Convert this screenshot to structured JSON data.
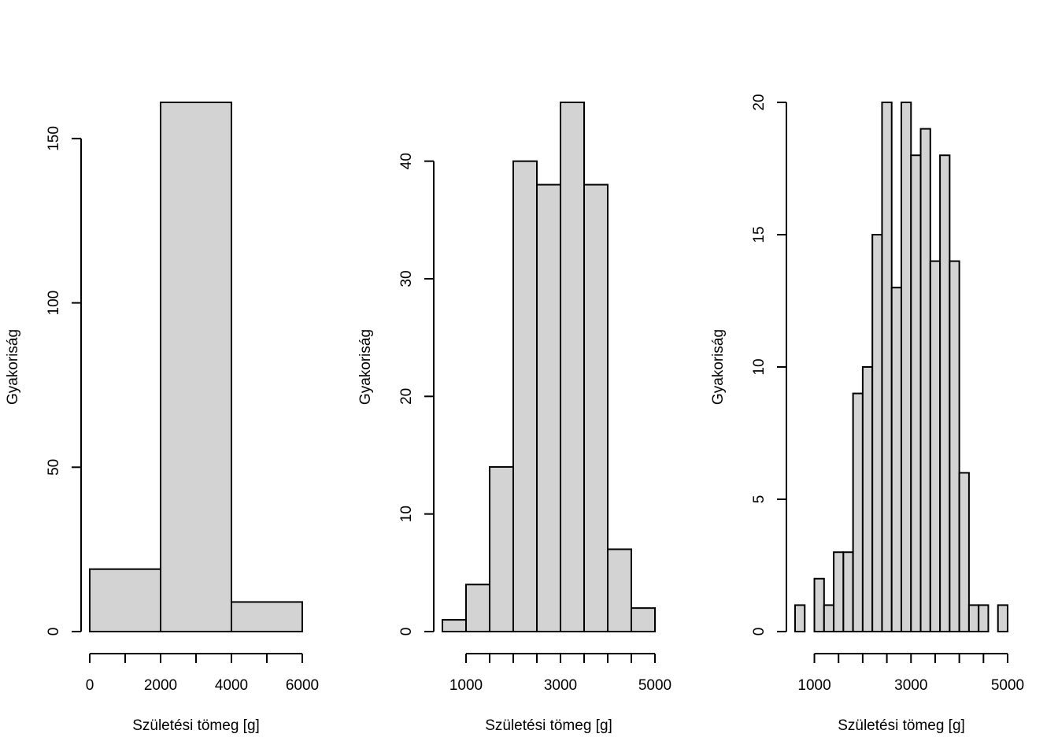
{
  "chart_data": [
    {
      "type": "bar",
      "xlabel": "Születési tömeg [g]",
      "ylabel": "Gyakoriság",
      "bin_edges": [
        0,
        2000,
        4000,
        6000
      ],
      "counts": [
        19,
        161,
        9
      ],
      "xlim": [
        0,
        6000
      ],
      "ylim": [
        0,
        161
      ],
      "x_ticks": [
        0,
        1000,
        2000,
        3000,
        4000,
        5000,
        6000
      ],
      "x_tick_labels": [
        "0",
        "",
        "2000",
        "",
        "4000",
        "",
        "6000"
      ],
      "y_ticks": [
        0,
        50,
        100,
        150
      ],
      "y_tick_labels": [
        "0",
        "50",
        "100",
        "150"
      ]
    },
    {
      "type": "bar",
      "xlabel": "Születési tömeg [g]",
      "ylabel": "Gyakoriság",
      "bin_edges": [
        500,
        1000,
        1500,
        2000,
        2500,
        3000,
        3500,
        4000,
        4500,
        5000
      ],
      "counts": [
        1,
        4,
        14,
        40,
        38,
        45,
        38,
        7,
        2
      ],
      "xlim": [
        500,
        5000
      ],
      "ylim": [
        0,
        45
      ],
      "x_ticks": [
        1000,
        1500,
        2000,
        2500,
        3000,
        3500,
        4000,
        4500,
        5000
      ],
      "x_tick_labels": [
        "1000",
        "",
        "",
        "",
        "3000",
        "",
        "",
        "",
        "5000"
      ],
      "y_ticks": [
        0,
        10,
        20,
        30,
        40
      ],
      "y_tick_labels": [
        "0",
        "10",
        "20",
        "30",
        "40"
      ]
    },
    {
      "type": "bar",
      "xlabel": "Születési tömeg [g]",
      "ylabel": "Gyakoriság",
      "bin_edges": [
        600,
        800,
        1000,
        1200,
        1400,
        1600,
        1800,
        2000,
        2200,
        2400,
        2600,
        2800,
        3000,
        3200,
        3400,
        3600,
        3800,
        4000,
        4200,
        4400,
        4600,
        4800,
        5000
      ],
      "counts": [
        1,
        0,
        2,
        1,
        3,
        3,
        9,
        10,
        15,
        20,
        13,
        20,
        18,
        19,
        14,
        18,
        14,
        6,
        1,
        1,
        0,
        1
      ],
      "xlim": [
        600,
        5000
      ],
      "ylim": [
        0,
        20
      ],
      "x_ticks": [
        1000,
        1500,
        2000,
        2500,
        3000,
        3500,
        4000,
        4500,
        5000
      ],
      "x_tick_labels": [
        "1000",
        "",
        "",
        "",
        "3000",
        "",
        "",
        "",
        "5000"
      ],
      "y_ticks": [
        0,
        5,
        10,
        15,
        20
      ],
      "y_tick_labels": [
        "0",
        "5",
        "10",
        "15",
        "20"
      ]
    }
  ]
}
